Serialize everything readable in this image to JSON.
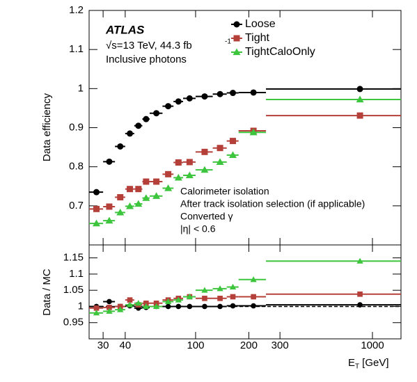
{
  "chart_data": [
    {
      "type": "errorbar",
      "ylabel": "Data efficiency",
      "texts": [
        "ATLAS",
        "√s=13 TeV, 44.3 fb",
        "-1",
        "Inclusive photons"
      ],
      "annotations": [
        "Calorimeter isolation",
        "After track isolation selection (if applicable)",
        "Converted γ",
        "|η| < 0.6"
      ],
      "log_x": true,
      "xlim": [
        25,
        1450
      ],
      "ylim": [
        0.6,
        1.2
      ],
      "yticks": [
        0.7,
        0.8,
        0.9,
        1,
        1.1,
        1.2
      ],
      "bins": [
        25,
        30,
        35,
        40,
        45,
        50,
        55,
        65,
        75,
        85,
        100,
        125,
        150,
        175,
        250,
        1450
      ],
      "x": [
        27.5,
        32.5,
        37.5,
        42.5,
        47.5,
        52.5,
        60,
        70,
        80,
        92.5,
        112.5,
        137.5,
        162.5,
        212.5,
        850
      ],
      "legend": "upper right",
      "series": [
        {
          "name": "Loose",
          "color": "#000000",
          "marker": "circle",
          "values": [
            0.735,
            0.813,
            0.852,
            0.885,
            0.905,
            0.922,
            0.937,
            0.955,
            0.967,
            0.975,
            0.98,
            0.986,
            0.989,
            0.99,
            0.999
          ]
        },
        {
          "name": "Tight",
          "color": "#b5403a",
          "marker": "square",
          "values": [
            0.692,
            0.698,
            0.722,
            0.743,
            0.743,
            0.762,
            0.762,
            0.781,
            0.811,
            0.812,
            0.838,
            0.848,
            0.866,
            0.892,
            0.931
          ]
        },
        {
          "name": "TightCaloOnly",
          "color": "#3dc53d",
          "marker": "triangle",
          "values": [
            0.655,
            0.662,
            0.683,
            0.699,
            0.705,
            0.72,
            0.725,
            0.745,
            0.772,
            0.778,
            0.792,
            0.812,
            0.83,
            0.888,
            0.972
          ]
        }
      ]
    },
    {
      "type": "errorbar",
      "ylabel": "Data / MC",
      "xlabel": [
        "E",
        "T",
        " [GeV]"
      ],
      "log_x": true,
      "xlim": [
        25,
        1450
      ],
      "ylim": [
        0.9,
        1.19
      ],
      "yticks": [
        0.95,
        1,
        1.05,
        1.1,
        1.15
      ],
      "xticks": [
        30,
        40,
        100,
        200,
        300,
        1000
      ],
      "reference_line": 1,
      "bins": [
        25,
        30,
        35,
        40,
        45,
        50,
        55,
        65,
        75,
        85,
        100,
        125,
        150,
        175,
        250,
        1450
      ],
      "x": [
        27.5,
        32.5,
        37.5,
        42.5,
        47.5,
        52.5,
        60,
        70,
        80,
        92.5,
        112.5,
        137.5,
        162.5,
        212.5,
        850
      ],
      "series": [
        {
          "name": "Loose",
          "color": "#000000",
          "marker": "circle",
          "values": [
            1.0,
            1.015,
            1.0,
            1.002,
            0.995,
            0.997,
            1.0,
            1.0,
            1.0,
            1.0,
            1.0,
            1.0,
            1.002,
            1.002,
            1.005
          ]
        },
        {
          "name": "Tight",
          "color": "#b5403a",
          "marker": "square",
          "values": [
            0.995,
            0.997,
            1.0,
            1.02,
            1.005,
            1.01,
            1.01,
            1.02,
            1.025,
            1.03,
            1.025,
            1.025,
            1.03,
            1.03,
            1.038
          ]
        },
        {
          "name": "TightCaloOnly",
          "color": "#3dc53d",
          "marker": "triangle",
          "values": [
            0.98,
            0.985,
            0.99,
            1.005,
            1.01,
            1.0,
            1.0,
            1.015,
            1.02,
            1.03,
            1.05,
            1.055,
            1.06,
            1.083,
            1.14
          ]
        }
      ]
    }
  ]
}
